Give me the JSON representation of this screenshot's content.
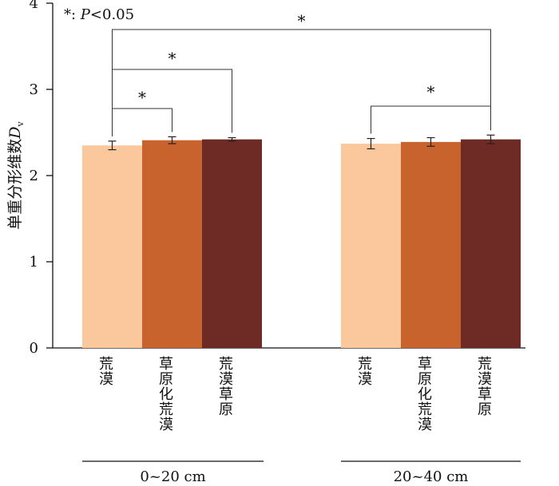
{
  "chart_data": {
    "type": "bar",
    "ylabel_main": "单重分形维数",
    "ylabel_var": "D",
    "ylabel_sub": "v",
    "ylim": [
      0,
      4
    ],
    "yticks": [
      "0",
      "1",
      "2",
      "3",
      "4"
    ],
    "annotation": {
      "symbol": "*",
      "text": ": ",
      "var": "P",
      "rest": "<0.05"
    },
    "colors": [
      "#fac89c",
      "#c8632e",
      "#6e2a24"
    ],
    "groups": [
      {
        "label": "0~20 cm",
        "bars": [
          {
            "category": "荒漠",
            "value": 2.35,
            "error": 0.05
          },
          {
            "category": "草原化荒漠",
            "value": 2.41,
            "error": 0.04
          },
          {
            "category": "荒漠草原",
            "value": 2.42,
            "error": 0.02
          }
        ]
      },
      {
        "label": "20~40 cm",
        "bars": [
          {
            "category": "荒漠",
            "value": 2.37,
            "error": 0.06
          },
          {
            "category": "草原化荒漠",
            "value": 2.39,
            "error": 0.05
          },
          {
            "category": "荒漠草原",
            "value": 2.42,
            "error": 0.05
          }
        ]
      }
    ],
    "significance": [
      {
        "group": 0,
        "from": 0,
        "to": 1,
        "label": "*"
      },
      {
        "group": 0,
        "from": 0,
        "to": 2,
        "label": "*"
      },
      {
        "from_group": 0,
        "from": 0,
        "to_group": 1,
        "to": 2,
        "label": "*"
      },
      {
        "group": 1,
        "from": 0,
        "to": 2,
        "label": "*"
      }
    ]
  }
}
